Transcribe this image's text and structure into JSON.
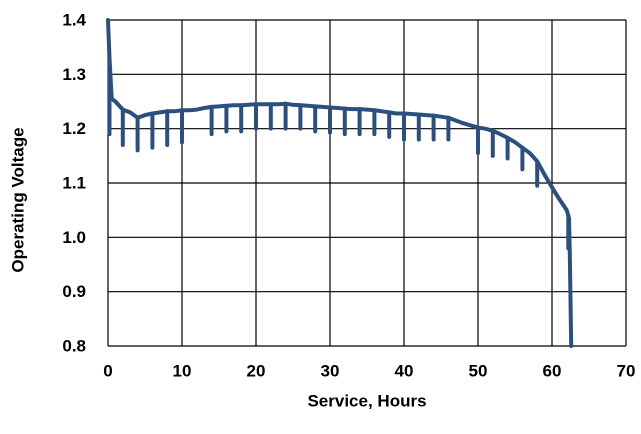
{
  "chart_data": {
    "type": "line",
    "title": "",
    "xlabel": "Service, Hours",
    "ylabel": "Operating Voltage",
    "xlim": [
      0,
      70
    ],
    "ylim": [
      0.8,
      1.4
    ],
    "x_ticks": [
      "0",
      "10",
      "20",
      "30",
      "40",
      "50",
      "60",
      "70"
    ],
    "y_ticks": [
      "0.8",
      "0.9",
      "1.0",
      "1.1",
      "1.2",
      "1.3",
      "1.4"
    ],
    "grid": true,
    "legend": "none",
    "line_color": "#2b4f7f",
    "series": [
      {
        "values": [
          [
            0,
            1.4
          ],
          [
            0.2,
            1.33
          ],
          [
            0.5,
            1.255
          ],
          [
            1,
            1.25
          ],
          [
            2,
            1.235
          ],
          [
            3,
            1.23
          ],
          [
            4,
            1.22
          ],
          [
            5,
            1.225
          ],
          [
            6,
            1.228
          ],
          [
            7,
            1.23
          ],
          [
            8,
            1.232
          ],
          [
            9,
            1.232
          ],
          [
            10,
            1.234
          ],
          [
            11,
            1.234
          ],
          [
            12,
            1.235
          ],
          [
            13,
            1.238
          ],
          [
            14,
            1.24
          ],
          [
            15,
            1.241
          ],
          [
            16,
            1.242
          ],
          [
            17,
            1.243
          ],
          [
            18,
            1.243
          ],
          [
            19,
            1.244
          ],
          [
            20,
            1.245
          ],
          [
            21,
            1.245
          ],
          [
            22,
            1.245
          ],
          [
            23,
            1.245
          ],
          [
            24,
            1.246
          ],
          [
            25,
            1.244
          ],
          [
            26,
            1.243
          ],
          [
            27,
            1.242
          ],
          [
            28,
            1.241
          ],
          [
            29,
            1.24
          ],
          [
            30,
            1.239
          ],
          [
            31,
            1.238
          ],
          [
            32,
            1.237
          ],
          [
            33,
            1.236
          ],
          [
            34,
            1.236
          ],
          [
            35,
            1.235
          ],
          [
            36,
            1.234
          ],
          [
            37,
            1.232
          ],
          [
            38,
            1.23
          ],
          [
            39,
            1.228
          ],
          [
            40,
            1.228
          ],
          [
            41,
            1.227
          ],
          [
            42,
            1.226
          ],
          [
            43,
            1.225
          ],
          [
            44,
            1.224
          ],
          [
            45,
            1.222
          ],
          [
            46,
            1.22
          ],
          [
            47,
            1.215
          ],
          [
            48,
            1.21
          ],
          [
            49,
            1.206
          ],
          [
            50,
            1.202
          ],
          [
            51,
            1.2
          ],
          [
            52,
            1.196
          ],
          [
            53,
            1.19
          ],
          [
            54,
            1.183
          ],
          [
            55,
            1.175
          ],
          [
            56,
            1.165
          ],
          [
            57,
            1.155
          ],
          [
            58,
            1.14
          ],
          [
            59,
            1.115
          ],
          [
            60,
            1.092
          ],
          [
            61,
            1.07
          ],
          [
            62,
            1.05
          ],
          [
            62.3,
            1.035
          ],
          [
            62.4,
            0.97
          ],
          [
            62.6,
            0.8
          ]
        ],
        "pulse_dips": [
          [
            0.2,
            1.19
          ],
          [
            2,
            1.17
          ],
          [
            4,
            1.16
          ],
          [
            6,
            1.165
          ],
          [
            8,
            1.17
          ],
          [
            10,
            1.175
          ],
          [
            14,
            1.19
          ],
          [
            16,
            1.195
          ],
          [
            18,
            1.195
          ],
          [
            20,
            1.2
          ],
          [
            22,
            1.2
          ],
          [
            24,
            1.2
          ],
          [
            26,
            1.2
          ],
          [
            28,
            1.195
          ],
          [
            30,
            1.193
          ],
          [
            32,
            1.19
          ],
          [
            34,
            1.19
          ],
          [
            36,
            1.19
          ],
          [
            38,
            1.185
          ],
          [
            40,
            1.18
          ],
          [
            42,
            1.18
          ],
          [
            44,
            1.18
          ],
          [
            46,
            1.18
          ],
          [
            50,
            1.155
          ],
          [
            52,
            1.15
          ],
          [
            54,
            1.145
          ],
          [
            56,
            1.125
          ],
          [
            58,
            1.095
          ],
          [
            62.2,
            0.98
          ]
        ]
      }
    ]
  }
}
